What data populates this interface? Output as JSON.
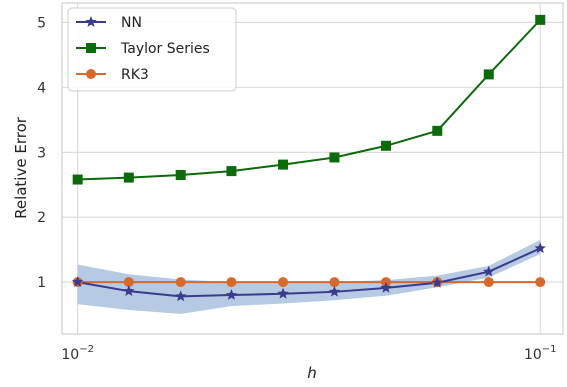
{
  "chart_data": {
    "type": "line",
    "xlabel": "h",
    "ylabel": "Relative Error",
    "x_scale": "log",
    "xlim": [
      0.00925,
      0.112
    ],
    "ylim": [
      0.2,
      5.3
    ],
    "grid": true,
    "legend_position": "top-left",
    "x_ticks": [
      {
        "value": 0.01,
        "base": "10",
        "exp": "−2"
      },
      {
        "value": 0.1,
        "base": "10",
        "exp": "−1"
      }
    ],
    "y_ticks": [
      1,
      2,
      3,
      4,
      5
    ],
    "x": [
      0.01,
      0.0129,
      0.0167,
      0.0215,
      0.0278,
      0.0359,
      0.0464,
      0.0599,
      0.0774,
      0.1
    ],
    "series": [
      {
        "name": "NN",
        "color": "#3b3a8c",
        "marker": "star",
        "values": [
          1.0,
          0.86,
          0.78,
          0.8,
          0.82,
          0.85,
          0.91,
          0.99,
          1.16,
          1.52
        ],
        "band_lower": [
          0.66,
          0.57,
          0.51,
          0.63,
          0.67,
          0.72,
          0.79,
          0.92,
          1.07,
          1.43
        ],
        "band_upper": [
          1.27,
          1.12,
          1.04,
          1.0,
          1.0,
          1.0,
          1.03,
          1.1,
          1.25,
          1.65
        ],
        "band_color": "#aec4e0"
      },
      {
        "name": "Taylor Series",
        "color": "#0b6b0b",
        "marker": "square",
        "values": [
          2.58,
          2.61,
          2.65,
          2.71,
          2.81,
          2.92,
          3.1,
          3.33,
          4.2,
          5.04
        ]
      },
      {
        "name": "RK3",
        "color": "#d8692a",
        "marker": "circle",
        "values": [
          1.0,
          1.0,
          1.0,
          1.0,
          1.0,
          1.0,
          1.0,
          1.0,
          1.0,
          1.0
        ]
      }
    ]
  }
}
